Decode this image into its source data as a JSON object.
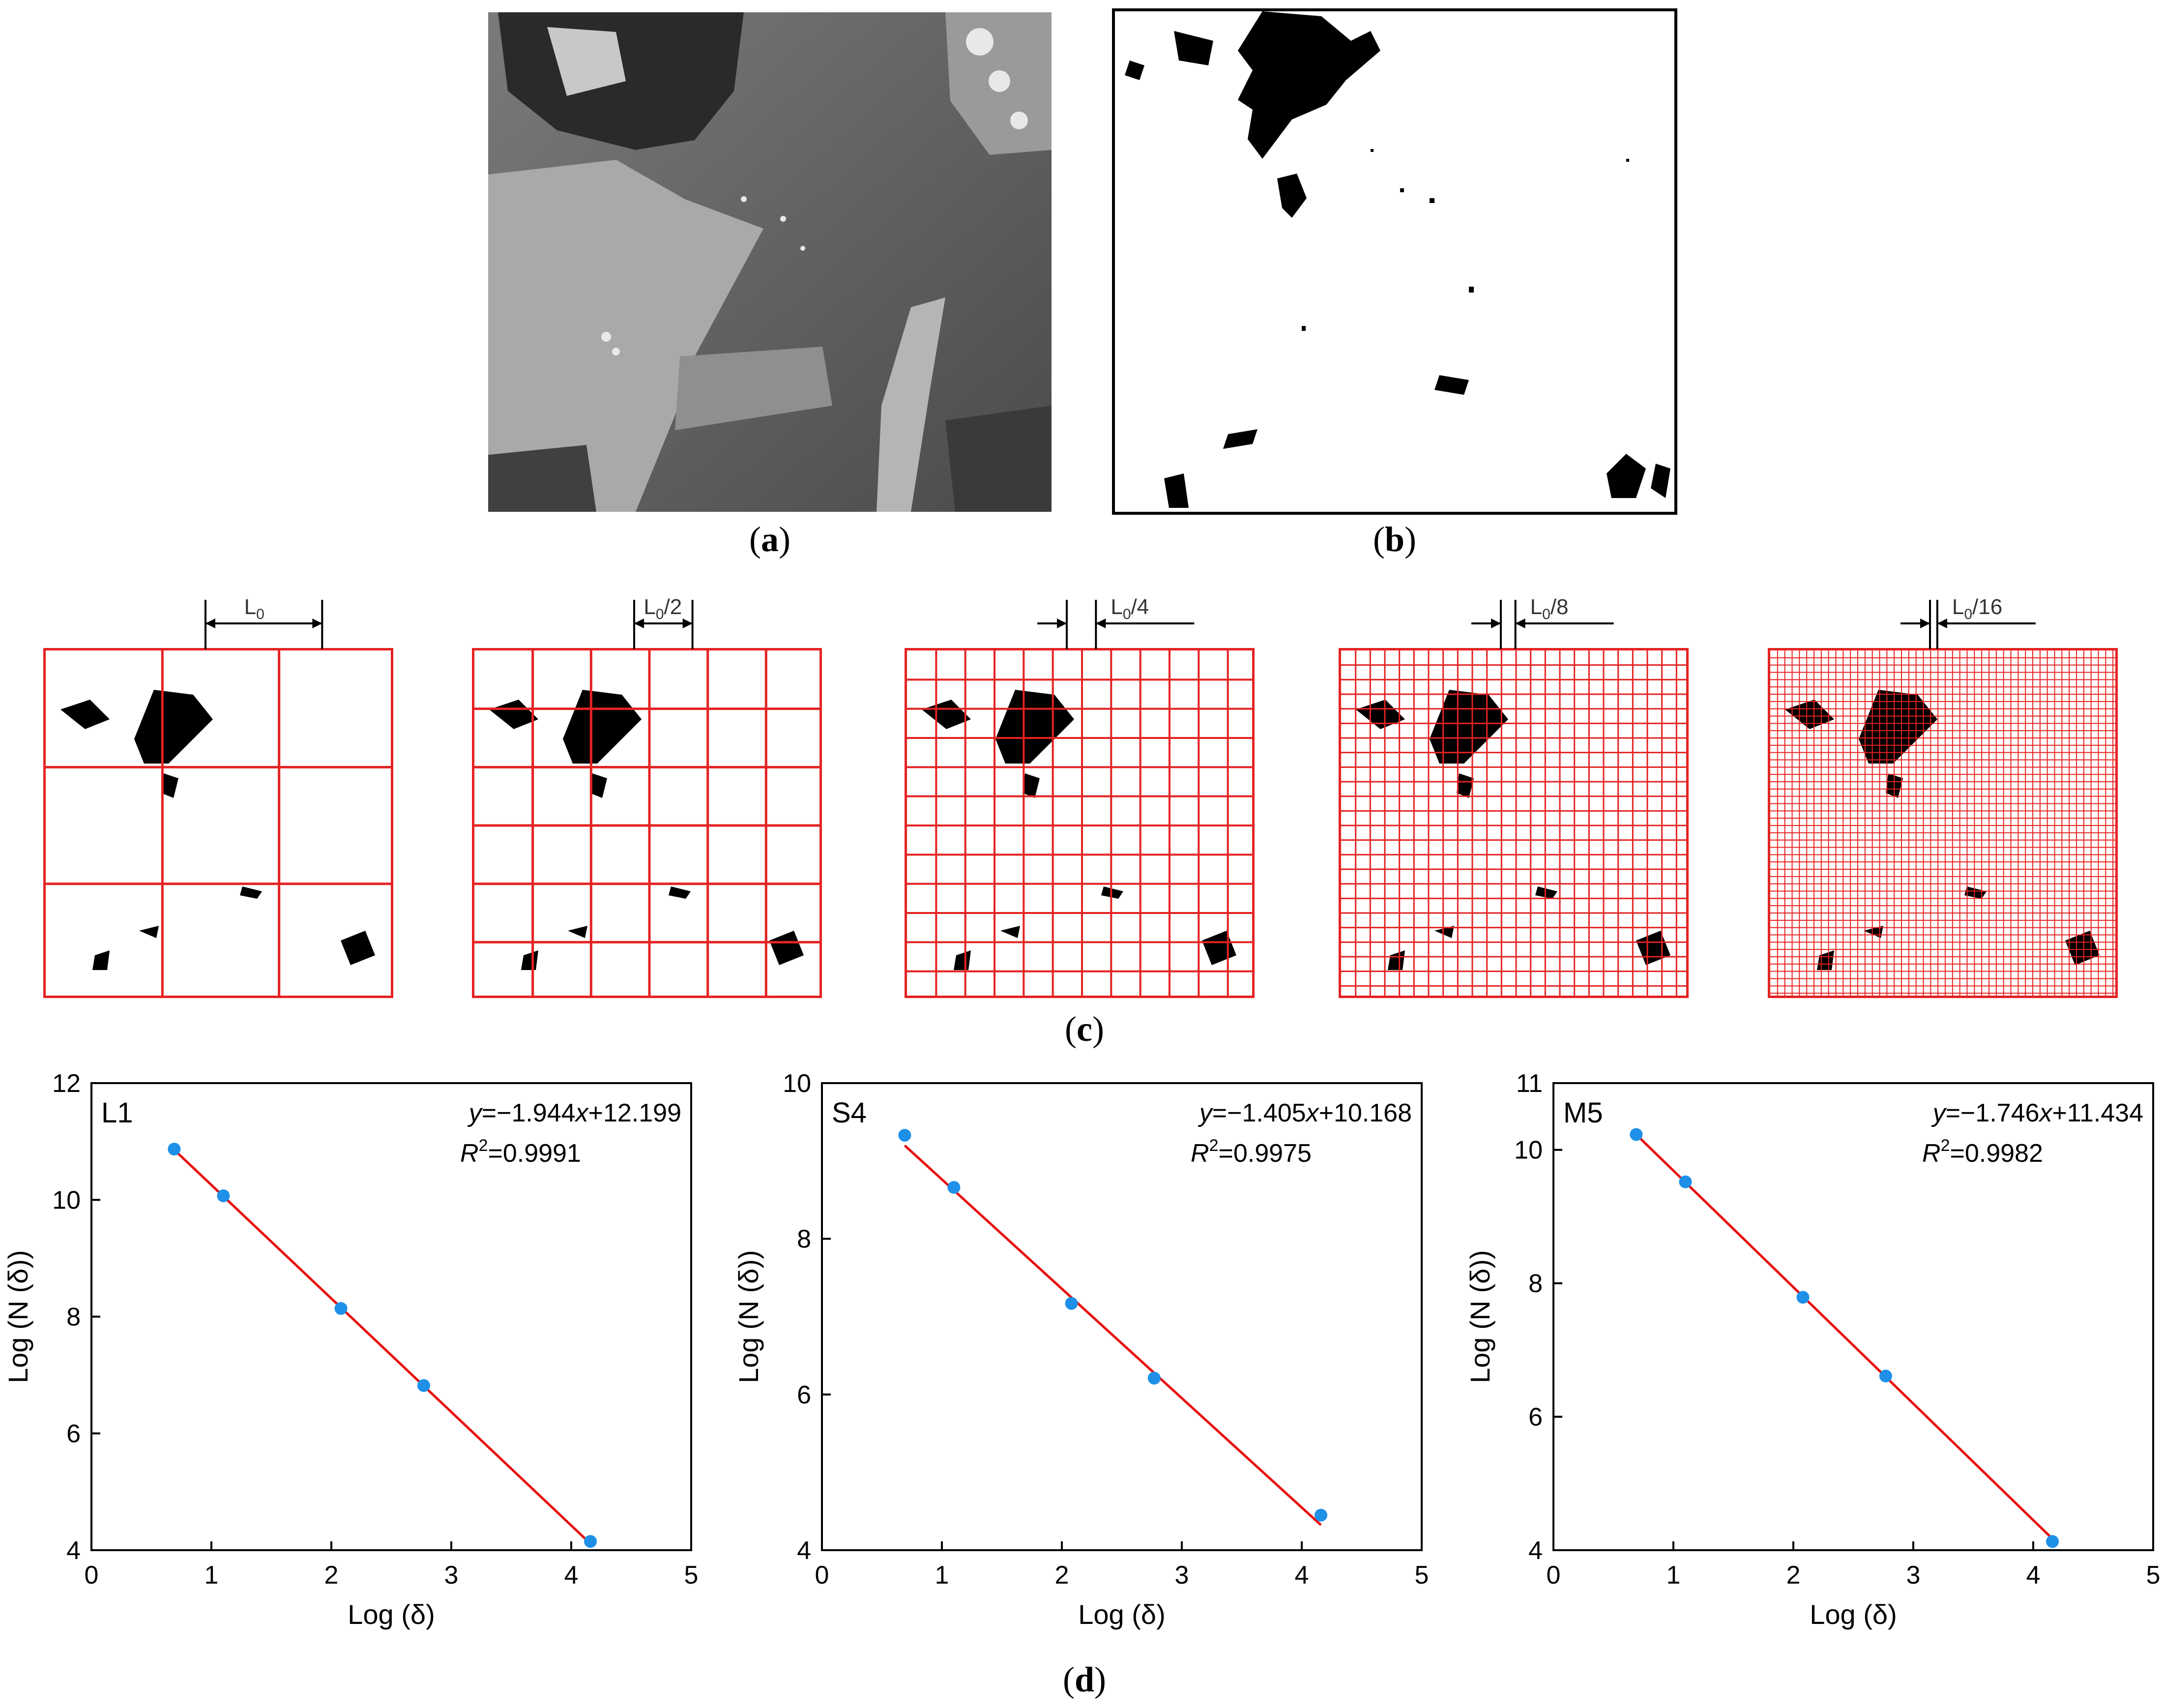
{
  "captions": {
    "a": "a",
    "b": "b",
    "c": "c",
    "d": "d"
  },
  "panel_a": {
    "image": "SEM micrograph of pore structure"
  },
  "panel_b": {
    "image": "Binarized pore image"
  },
  "box_counting": {
    "scales": [
      {
        "label": "L",
        "sub": "0",
        "suffix": "",
        "divisions": 3
      },
      {
        "label": "L",
        "sub": "0",
        "suffix": "/2",
        "divisions": 6
      },
      {
        "label": "L",
        "sub": "0",
        "suffix": "/4",
        "divisions": 12
      },
      {
        "label": "L",
        "sub": "0",
        "suffix": "/8",
        "divisions": 24
      },
      {
        "label": "L",
        "sub": "0",
        "suffix": "/16",
        "divisions": 48
      }
    ],
    "colors": {
      "grid": "#e52222",
      "pore": "#000000"
    }
  },
  "chart_data": [
    {
      "type": "scatter",
      "tag": "L1",
      "equation": {
        "y": "y",
        "sign": "=−1.944",
        "x": "x",
        "rest": "+12.199"
      },
      "r2": {
        "R": "R",
        "exp": "2",
        "val": "=0.9991"
      },
      "x": [
        0.69,
        1.1,
        2.08,
        2.77,
        4.16
      ],
      "y": [
        10.87,
        10.07,
        8.14,
        6.82,
        4.15
      ],
      "fit": {
        "slope": -1.944,
        "intercept": 12.199
      },
      "xlim": [
        0,
        5
      ],
      "ylim": [
        4,
        12
      ],
      "xticks": [
        0,
        1,
        2,
        3,
        4,
        5
      ],
      "yticks": [
        4,
        6,
        8,
        10,
        12
      ],
      "xlabel": "Log (δ)",
      "ylabel": "Log (N (δ))",
      "colors": {
        "point": "#1e90e8",
        "line": "#e81010"
      }
    },
    {
      "type": "scatter",
      "tag": "S4",
      "equation": {
        "y": "y",
        "sign": "=−1.405",
        "x": "x",
        "rest": "+10.168"
      },
      "r2": {
        "R": "R",
        "exp": "2",
        "val": "=0.9975"
      },
      "x": [
        0.69,
        1.1,
        2.08,
        2.77,
        4.16
      ],
      "y": [
        9.33,
        8.66,
        7.17,
        6.21,
        4.45
      ],
      "fit": {
        "slope": -1.405,
        "intercept": 10.168
      },
      "xlim": [
        0,
        5
      ],
      "ylim": [
        4,
        10
      ],
      "xticks": [
        0,
        1,
        2,
        3,
        4,
        5
      ],
      "yticks": [
        4,
        6,
        8,
        10
      ],
      "xlabel": "Log (δ)",
      "ylabel": "Log (N (δ))",
      "colors": {
        "point": "#1e90e8",
        "line": "#e81010"
      }
    },
    {
      "type": "scatter",
      "tag": "M5",
      "equation": {
        "y": "y",
        "sign": "=−1.746",
        "x": "x",
        "rest": "+11.434"
      },
      "r2": {
        "R": "R",
        "exp": "2",
        "val": "=0.9982"
      },
      "x": [
        0.69,
        1.1,
        2.08,
        2.77,
        4.16
      ],
      "y": [
        10.23,
        9.52,
        7.79,
        6.61,
        4.13
      ],
      "fit": {
        "slope": -1.746,
        "intercept": 11.434
      },
      "xlim": [
        0,
        5
      ],
      "ylim": [
        4,
        11
      ],
      "xticks": [
        0,
        1,
        2,
        3,
        4,
        5
      ],
      "yticks": [
        4,
        6,
        8,
        10,
        11
      ],
      "xlabel": "Log (δ)",
      "ylabel": "Log (N (δ))",
      "colors": {
        "point": "#1e90e8",
        "line": "#e81010"
      }
    }
  ]
}
